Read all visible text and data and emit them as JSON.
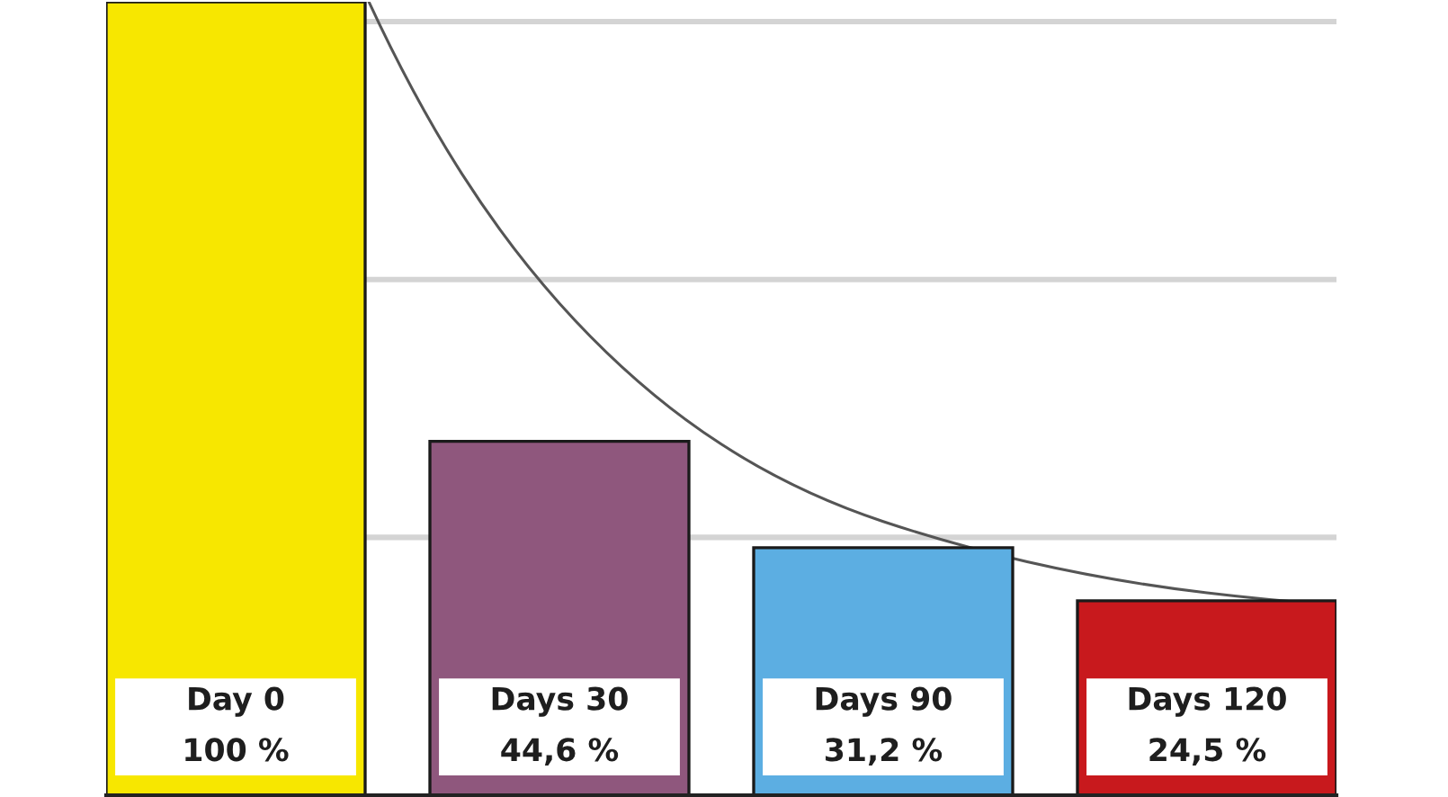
{
  "chart_data": {
    "type": "bar",
    "categories": [
      "Day 0",
      "Days 30",
      "Days 90",
      "Days 120"
    ],
    "series": [
      {
        "colors": [
          "#f7e700",
          "#8f577d",
          "#5caee2",
          "#c8191d"
        ],
        "values": [
          100,
          44.6,
          31.2,
          24.5
        ],
        "value_labels": [
          "100 %",
          "44,6 %",
          "31,2 %",
          "24,5 %"
        ]
      },
      {
        "type": "line",
        "values": [
          null,
          62,
          34.5,
          25.5
        ],
        "color": "#555555"
      }
    ],
    "ylim": [
      0,
      100
    ],
    "yticks": [
      {
        "value": 32.5,
        "label": null
      },
      {
        "value": 65,
        "label": null
      },
      {
        "value": 97.5,
        "label": null
      }
    ],
    "grid": "y",
    "tick_labels": "x"
  }
}
